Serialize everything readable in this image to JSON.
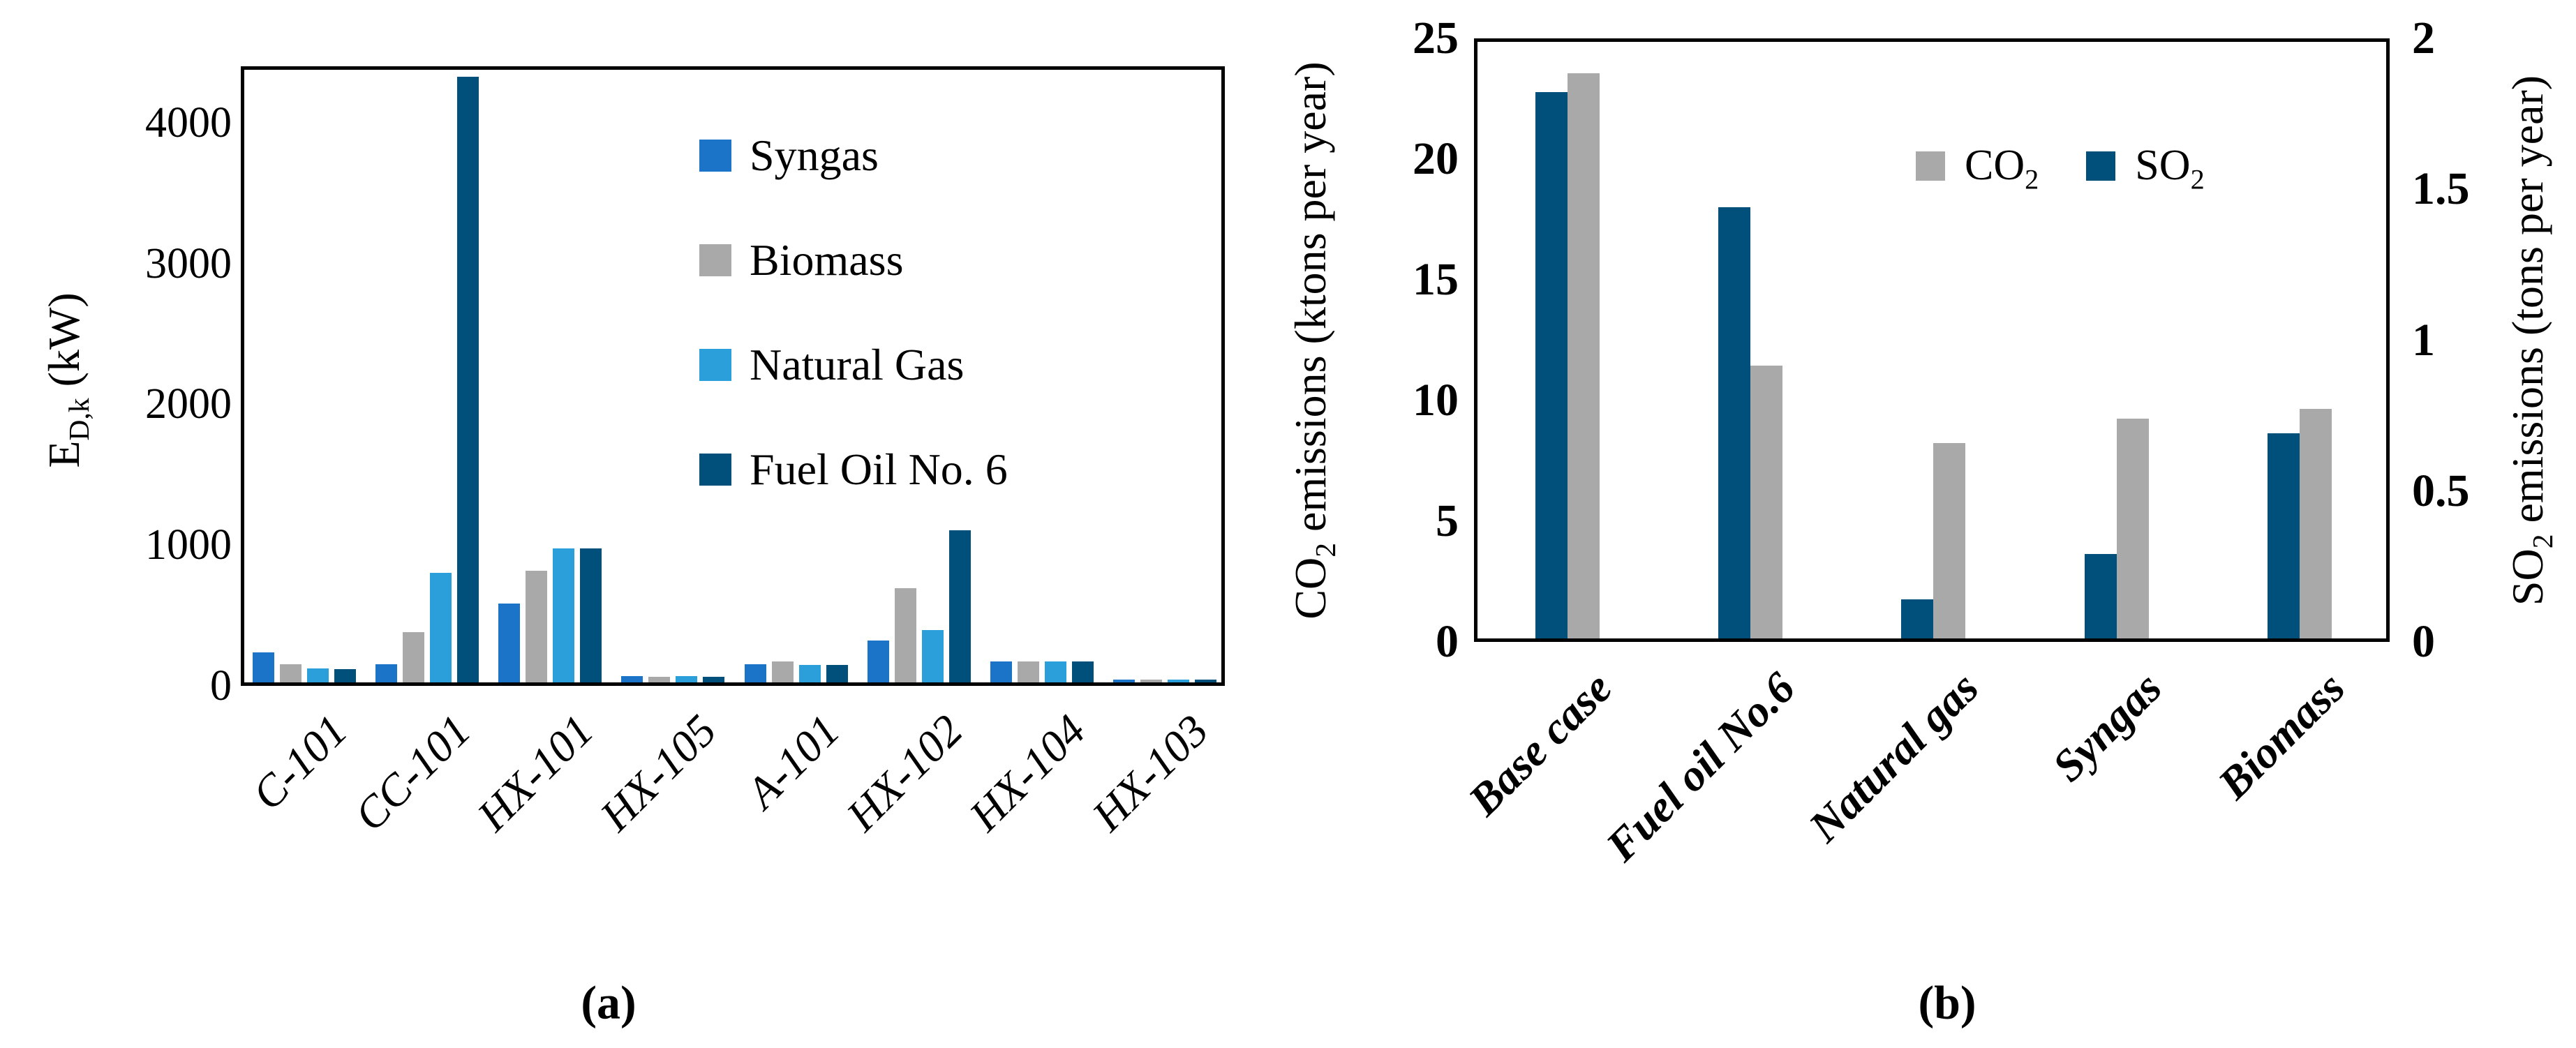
{
  "colors": {
    "syngas": "#1b74c8",
    "biomass": "#a9a9a9",
    "natural_gas": "#2b9fd9",
    "fuel_oil": "#01507c",
    "co2": "#a9a9a9",
    "so2": "#00507b",
    "axis": "#000000",
    "background": "#ffffff"
  },
  "captions": {
    "a": "(a)",
    "b": "(b)"
  },
  "chart_data": [
    {
      "type": "bar",
      "panel": "a",
      "ylabel": {
        "pre": "E",
        "sub": "D,k",
        "post": " (kW)"
      },
      "ylim": [
        0,
        4400
      ],
      "yticks": [
        "0",
        "1000",
        "2000",
        "3000",
        "4000"
      ],
      "grid": "off",
      "legend_position": "upper right inside",
      "categories": [
        "C-101",
        "CC-101",
        "HX-101",
        "HX-105",
        "A-101",
        "HX-102",
        "HX-104",
        "HX-103"
      ],
      "series": [
        {
          "name": "Syngas",
          "color_key": "syngas",
          "values": [
            215,
            130,
            560,
            45,
            130,
            295,
            150,
            20
          ]
        },
        {
          "name": "Biomass",
          "color_key": "biomass",
          "values": [
            130,
            355,
            795,
            40,
            150,
            670,
            150,
            20
          ]
        },
        {
          "name": "Natural Gas",
          "color_key": "natural_gas",
          "values": [
            100,
            780,
            950,
            45,
            125,
            370,
            150,
            20
          ]
        },
        {
          "name": "Fuel Oil No. 6",
          "color_key": "fuel_oil",
          "values": [
            95,
            4300,
            950,
            40,
            125,
            1080,
            150,
            20
          ]
        }
      ]
    },
    {
      "type": "bar",
      "panel": "b",
      "grid": "off",
      "legend_position": "upper right inside",
      "left_axis": {
        "label": {
          "pre": "CO",
          "sub": "2",
          "post": " emissions (ktons per year)"
        },
        "lim": [
          0,
          25
        ],
        "ticks": [
          "0",
          "5",
          "10",
          "15",
          "20",
          "25"
        ]
      },
      "right_axis": {
        "label": {
          "pre": "SO",
          "sub": "2",
          "post": " emissions (tons per year)"
        },
        "lim": [
          0,
          2
        ],
        "ticks": [
          "0",
          "0.5",
          "1",
          "1.5",
          "2"
        ]
      },
      "categories": [
        "Base case",
        "Fuel oil No.6",
        "Natural gas",
        "Syngas",
        "Biomass"
      ],
      "series": [
        {
          "name": "SO2",
          "axis": "right",
          "color_key": "so2",
          "values": [
            1.81,
            1.43,
            0.13,
            0.28,
            0.68
          ]
        },
        {
          "name": "CO2",
          "axis": "left",
          "color_key": "co2",
          "values": [
            23.4,
            11.3,
            8.1,
            9.1,
            9.5
          ]
        }
      ],
      "legend": [
        {
          "pre": "CO",
          "sub": "2",
          "color_key": "co2"
        },
        {
          "pre": "SO",
          "sub": "2",
          "color_key": "so2"
        }
      ]
    }
  ]
}
